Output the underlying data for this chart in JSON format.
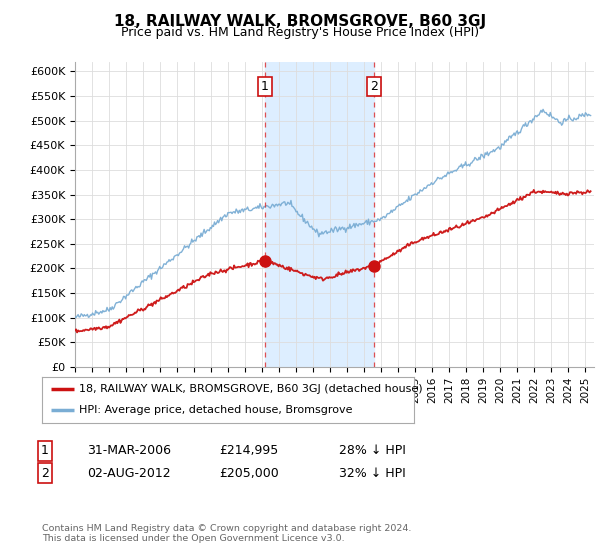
{
  "title": "18, RAILWAY WALK, BROMSGROVE, B60 3GJ",
  "subtitle": "Price paid vs. HM Land Registry's House Price Index (HPI)",
  "ylabel_ticks": [
    "£0",
    "£50K",
    "£100K",
    "£150K",
    "£200K",
    "£250K",
    "£300K",
    "£350K",
    "£400K",
    "£450K",
    "£500K",
    "£550K",
    "£600K"
  ],
  "ylim": [
    0,
    620000
  ],
  "xlim_start": 1995.0,
  "xlim_end": 2025.5,
  "hpi_color": "#7aadd4",
  "price_color": "#cc1111",
  "purchase1_x": 2006.17,
  "purchase1_y": 214995,
  "purchase2_x": 2012.58,
  "purchase2_y": 205000,
  "shade_color": "#ddeeff",
  "vline_color": "#dd3333",
  "legend_house_label": "18, RAILWAY WALK, BROMSGROVE, B60 3GJ (detached house)",
  "legend_hpi_label": "HPI: Average price, detached house, Bromsgrove",
  "table_row1_num": "1",
  "table_row1_date": "31-MAR-2006",
  "table_row1_price": "£214,995",
  "table_row1_hpi": "28% ↓ HPI",
  "table_row2_num": "2",
  "table_row2_date": "02-AUG-2012",
  "table_row2_price": "£205,000",
  "table_row2_hpi": "32% ↓ HPI",
  "footnote": "Contains HM Land Registry data © Crown copyright and database right 2024.\nThis data is licensed under the Open Government Licence v3.0.",
  "background_color": "#ffffff",
  "grid_color": "#dddddd"
}
